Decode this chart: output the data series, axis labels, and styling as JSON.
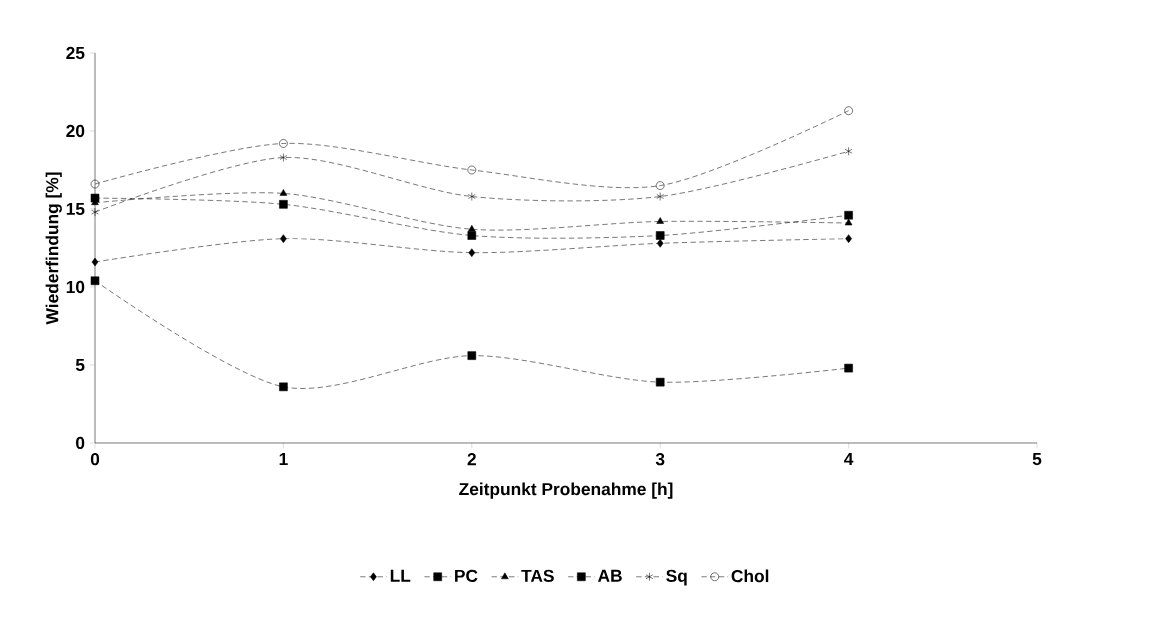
{
  "chart_data": {
    "type": "line",
    "xlabel": "Zeitpunkt Probenahme [h]",
    "ylabel": "Wiederfindung [%]",
    "x": [
      0,
      1,
      2,
      3,
      4
    ],
    "xlim": [
      0,
      5
    ],
    "xticks": [
      0,
      1,
      2,
      3,
      4,
      5
    ],
    "ylim": [
      0,
      25
    ],
    "yticks": [
      0,
      5,
      10,
      15,
      20,
      25
    ],
    "line_style": "dashed",
    "legend": "bottom",
    "grid": false,
    "series": [
      {
        "name": "LL",
        "color": "#000000",
        "marker": "diamond",
        "values": [
          11.6,
          13.1,
          12.2,
          12.8,
          13.1
        ]
      },
      {
        "name": "PC",
        "color": "#000000",
        "marker": "square",
        "values": [
          10.4,
          3.6,
          5.6,
          3.9,
          4.8
        ]
      },
      {
        "name": "TAS",
        "color": "#000000",
        "marker": "triangle",
        "values": [
          15.4,
          16.0,
          13.7,
          14.2,
          14.1
        ]
      },
      {
        "name": "AB",
        "color": "#000000",
        "marker": "square",
        "values": [
          15.7,
          15.3,
          13.3,
          13.3,
          14.6
        ]
      },
      {
        "name": "Sq",
        "color": "#000000",
        "marker": "cross",
        "values": [
          14.8,
          18.3,
          15.8,
          15.8,
          18.7
        ]
      },
      {
        "name": "Chol",
        "color": "#000000",
        "marker": "circle",
        "values": [
          16.6,
          19.2,
          17.5,
          16.5,
          21.3
        ]
      }
    ]
  }
}
